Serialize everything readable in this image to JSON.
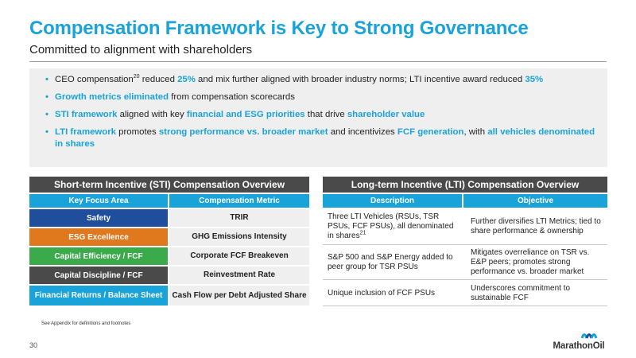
{
  "title": "Compensation Framework is Key to Strong Governance",
  "subtitle": "Committed to alignment with shareholders",
  "bullets": {
    "b1": {
      "t1": "CEO compensation",
      "sup": "20",
      "t2": " reduced ",
      "h1": "25%",
      "t3": " and mix further aligned with broader industry norms; LTI incentive award reduced ",
      "h2": "35%"
    },
    "b2": {
      "h1": "Growth metrics eliminated",
      "t1": " from compensation scorecards"
    },
    "b3": {
      "h1": "STI framework",
      "t1": " aligned with key ",
      "h2": "financial and ESG priorities",
      "t2": " that drive ",
      "h3": "shareholder value"
    },
    "b4": {
      "h1": "LTI framework",
      "t1": " promotes ",
      "h2": "strong performance vs. broader market",
      "t2": " and incentivizes ",
      "h3": "FCF generation",
      "t3": ", with ",
      "h4": "all vehicles denominated in shares"
    }
  },
  "sti": {
    "title": "Short-term Incentive (STI) Compensation Overview",
    "col1": "Key Focus Area",
    "col2": "Compensation Metric",
    "rows": [
      {
        "area": "Safety",
        "metric": "TRIR",
        "color": "#1f4e9c"
      },
      {
        "area": "ESG Excellence",
        "metric": "GHG Emissions Intensity",
        "color": "#e0791e"
      },
      {
        "area": "Capital Efficiency / FCF",
        "metric": "Corporate FCF Breakeven",
        "color": "#3aaa4a"
      },
      {
        "area": "Capital Discipline / FCF",
        "metric": "Reinvestment Rate",
        "color": "#4a4a4a"
      },
      {
        "area": "Financial Returns / Balance Sheet",
        "metric": "Cash Flow per Debt Adjusted Share",
        "color": "#1aa3d9"
      }
    ]
  },
  "lti": {
    "title": "Long-term Incentive (LTI) Compensation Overview",
    "col1": "Description",
    "col2": "Objective",
    "rows": [
      {
        "desc": "Three LTI Vehicles (RSUs, TSR PSUs, FCF PSUs), all denominated in shares",
        "desc_sup": "21",
        "obj": "Further diversifies LTI Metrics; tied to share performance & ownership"
      },
      {
        "desc": "S&P 500 and S&P Energy added to peer group for TSR PSUs",
        "obj": "Mitigates overreliance on TSR vs. E&P peers; promotes strong performance vs. broader market"
      },
      {
        "desc": "Unique inclusion of FCF PSUs",
        "obj": "Underscores commitment to sustainable FCF"
      }
    ]
  },
  "footnote": "See Appendix for definitions and footnotes",
  "page_number": "30",
  "logo_text": "MarathonOil",
  "colors": {
    "accent": "#1aa3d9",
    "dark_header": "#4a4a4a",
    "panel": "#efefef"
  }
}
